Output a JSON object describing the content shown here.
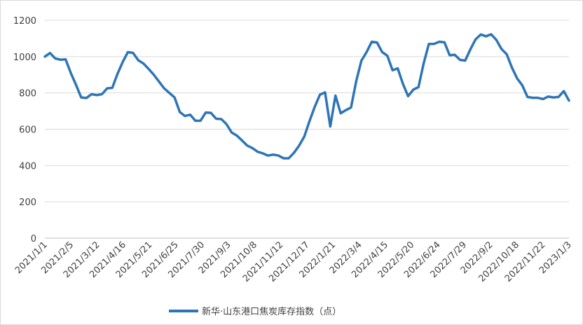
{
  "chart_data": {
    "type": "line",
    "title": "",
    "xlabel": "",
    "ylabel": "",
    "ylim": [
      0,
      1200
    ],
    "yticks": [
      0,
      200,
      400,
      600,
      800,
      1000,
      1200
    ],
    "grid": "horizontal",
    "legend_position": "bottom",
    "color": "#2E75B6",
    "x_tick_labels": [
      "2021/1/1",
      "2021/2/5",
      "2021/3/12",
      "2021/4/16",
      "2021/5/21",
      "2021/6/25",
      "2021/7/30",
      "2021/9/3",
      "2021/10/8",
      "2021/11/12",
      "2021/12/17",
      "2022/1/21",
      "2022/3/4",
      "2022/4/15",
      "2022/5/20",
      "2022/6/24",
      "2022/7/29",
      "2022/9/2",
      "2022/10/18",
      "2022/11/22",
      "2023/1/3"
    ],
    "series": [
      {
        "name": "新华·山东港口焦炭库存指数（点）",
        "values": [
          1000,
          1020,
          990,
          983,
          985,
          910,
          845,
          775,
          772,
          793,
          788,
          793,
          825,
          828,
          905,
          970,
          1025,
          1020,
          980,
          962,
          932,
          900,
          862,
          825,
          800,
          775,
          695,
          673,
          680,
          647,
          647,
          692,
          690,
          658,
          656,
          628,
          582,
          565,
          538,
          510,
          496,
          476,
          467,
          455,
          460,
          455,
          440,
          440,
          470,
          510,
          560,
          645,
          723,
          790,
          803,
          615,
          785,
          688,
          705,
          720,
          865,
          978,
          1025,
          1082,
          1078,
          1025,
          1005,
          925,
          935,
          850,
          782,
          818,
          832,
          963,
          1070,
          1070,
          1082,
          1079,
          1008,
          1010,
          982,
          978,
          1040,
          1095,
          1122,
          1112,
          1123,
          1092,
          1042,
          1013,
          940,
          880,
          842,
          778,
          773,
          773,
          766,
          780,
          775,
          778,
          810,
          758
        ]
      }
    ]
  },
  "legend": {
    "label": "新华·山东港口焦炭库存指数（点）"
  }
}
